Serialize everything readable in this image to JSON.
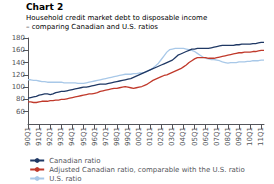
{
  "chart_data": {
    "type": "line",
    "title": "Chart 2",
    "subtitle": [
      "Household credit market debt to disposable income",
      "– comparing Canadian and U.S. ratios"
    ],
    "categories": [
      "90Q1",
      null,
      null,
      null,
      "91Q1",
      null,
      null,
      null,
      "92Q1",
      null,
      null,
      null,
      "93Q1",
      null,
      null,
      null,
      "94Q1",
      null,
      null,
      null,
      "95Q1",
      null,
      null,
      null,
      "96Q1",
      null,
      null,
      null,
      "97Q1",
      null,
      null,
      null,
      "98Q1",
      null,
      null,
      null,
      "99Q1",
      null,
      null,
      null,
      "00Q1",
      null,
      null,
      null,
      "01Q1",
      null,
      null,
      null,
      "02Q1",
      null,
      null,
      null,
      "03Q1",
      null,
      null,
      null,
      "04Q1",
      null,
      null,
      null,
      "05Q1",
      null,
      null,
      null,
      "06Q1",
      null,
      null,
      null,
      "07Q1",
      null,
      null,
      null,
      "08Q1",
      null,
      null,
      null,
      "09Q1",
      null,
      null,
      null,
      "10Q1",
      null,
      null,
      null,
      "11Q1",
      null
    ],
    "series": [
      {
        "name": "Canadian ratio",
        "color": "#1f3864",
        "values": [
          82,
          83,
          84,
          85,
          87,
          88,
          89,
          89,
          88,
          89,
          91,
          92,
          93,
          93,
          94,
          95,
          96,
          97,
          98,
          99,
          100,
          100,
          101,
          102,
          103,
          104,
          105,
          105,
          105,
          106,
          107,
          108,
          109,
          110,
          111,
          112,
          113,
          114,
          116,
          118,
          120,
          122,
          124,
          126,
          128,
          130,
          132,
          134,
          136,
          138,
          140,
          142,
          144,
          148,
          152,
          154,
          156,
          158,
          160,
          162,
          162,
          163,
          163,
          163,
          163,
          163,
          164,
          165,
          166,
          167,
          168,
          168,
          168,
          168,
          168,
          169,
          169,
          170,
          170,
          170,
          170,
          171,
          171,
          172,
          173,
          173
        ]
      },
      {
        "name": "Adjusted Canadian ratio, comparable with the U.S. ratio",
        "color": "#c0392b",
        "values": [
          76,
          76,
          75,
          75,
          76,
          77,
          77,
          77,
          78,
          78,
          79,
          79,
          80,
          80,
          81,
          82,
          83,
          84,
          85,
          86,
          87,
          88,
          89,
          89,
          90,
          91,
          93,
          94,
          95,
          96,
          97,
          98,
          98,
          99,
          100,
          101,
          100,
          99,
          98,
          99,
          100,
          101,
          103,
          105,
          108,
          111,
          113,
          115,
          117,
          119,
          120,
          122,
          124,
          126,
          128,
          130,
          133,
          136,
          140,
          143,
          146,
          148,
          148,
          148,
          148,
          147,
          147,
          147,
          148,
          149,
          150,
          151,
          152,
          153,
          154,
          155,
          156,
          156,
          157,
          157,
          157,
          158,
          158,
          159,
          160,
          160
        ]
      },
      {
        "name": "U.S. ratio",
        "color": "#a8c8e8",
        "values": [
          112,
          112,
          111,
          111,
          110,
          109,
          109,
          108,
          108,
          108,
          108,
          108,
          108,
          107,
          107,
          107,
          107,
          107,
          106,
          106,
          106,
          107,
          108,
          109,
          110,
          111,
          112,
          113,
          114,
          115,
          116,
          117,
          118,
          119,
          120,
          121,
          121,
          121,
          122,
          122,
          123,
          123,
          124,
          126,
          128,
          131,
          135,
          139,
          145,
          151,
          157,
          161,
          162,
          163,
          163,
          163,
          163,
          162,
          161,
          160,
          158,
          155,
          152,
          149,
          147,
          146,
          145,
          145,
          144,
          143,
          141,
          140,
          139,
          140,
          140,
          140,
          141,
          141,
          141,
          142,
          142,
          143,
          143,
          143,
          144,
          144
        ]
      }
    ],
    "ylim": [
      40,
      180
    ],
    "yticks": [
      60,
      80,
      100,
      120,
      140,
      160,
      180
    ],
    "grid": false,
    "legend": "bottom"
  }
}
